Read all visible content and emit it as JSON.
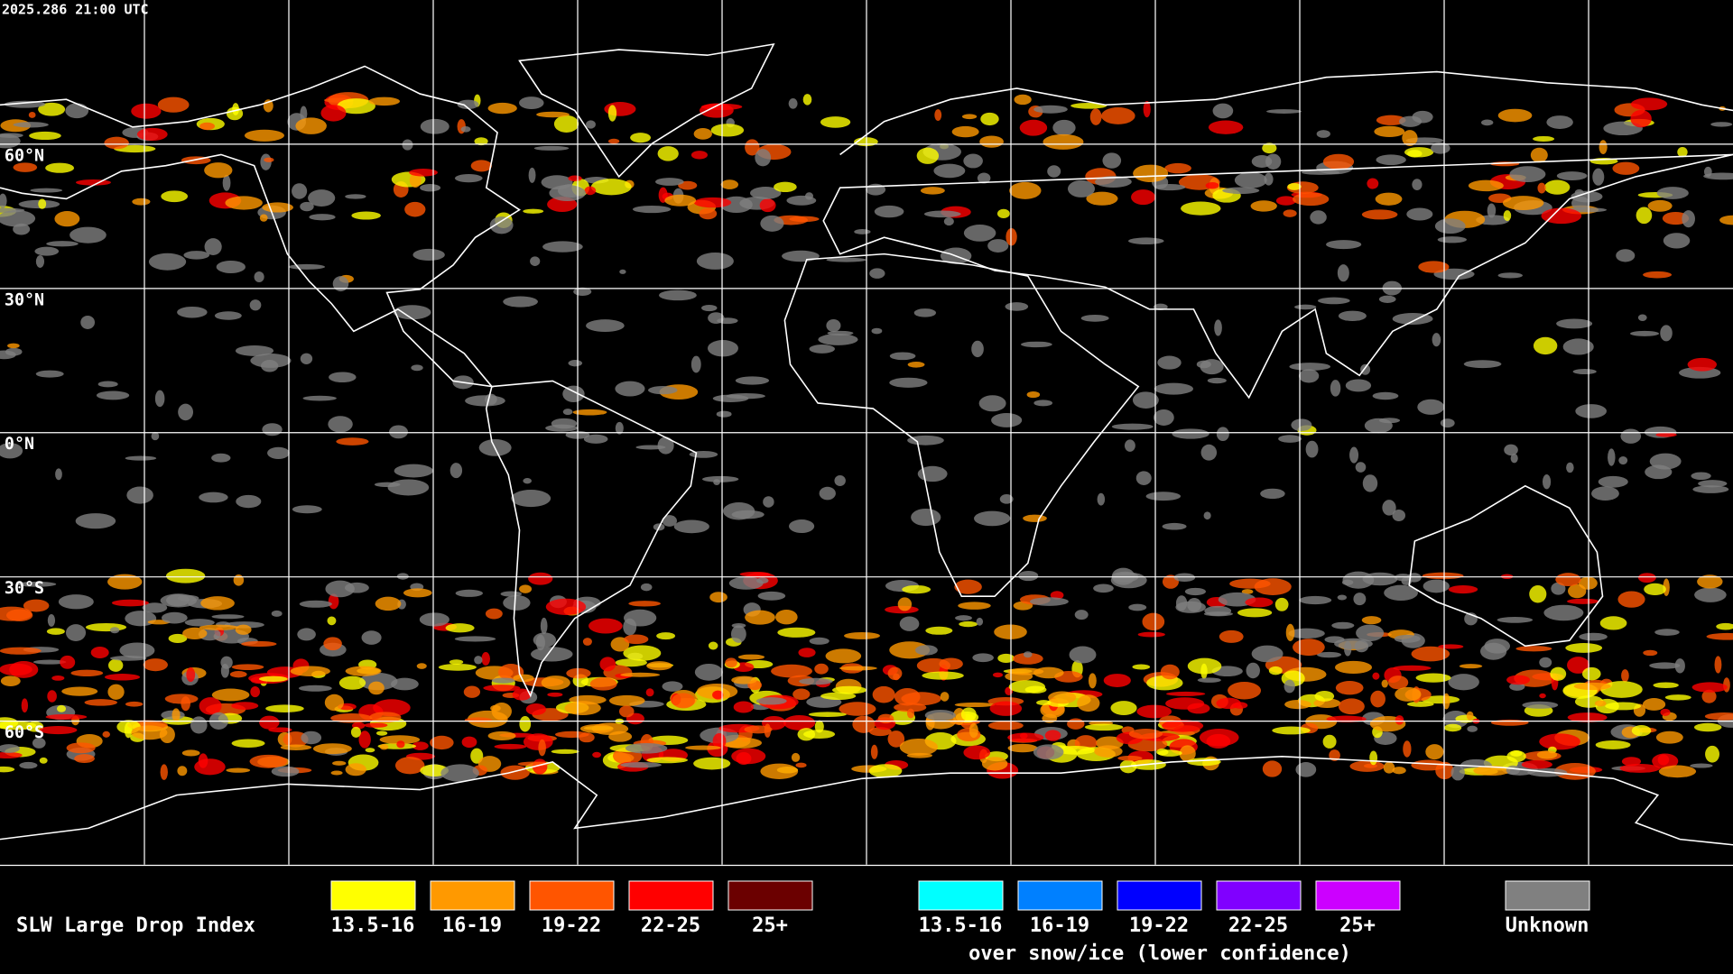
{
  "header": {
    "timestamp": "2025.286 21:00 UTC"
  },
  "latitude_labels": [
    "60°N",
    "30°N",
    "0°N",
    "30°S",
    "60°S"
  ],
  "legend": {
    "title": "SLW Large Drop Index",
    "items": [
      {
        "label": "13.5-16",
        "color": "#ffff00"
      },
      {
        "label": "16-19",
        "color": "#ff9900"
      },
      {
        "label": "19-22",
        "color": "#ff5500"
      },
      {
        "label": "22-25",
        "color": "#ff0000"
      },
      {
        "label": "25+",
        "color": "#6b0000"
      }
    ],
    "snow_items": [
      {
        "label": "13.5-16",
        "color": "#00ffff"
      },
      {
        "label": "16-19",
        "color": "#0080ff"
      },
      {
        "label": "19-22",
        "color": "#0000ff"
      },
      {
        "label": "22-25",
        "color": "#8000ff"
      },
      {
        "label": "25+",
        "color": "#cc00ff"
      }
    ],
    "snow_caption": "over snow/ice (lower confidence)",
    "unknown": {
      "label": "Unknown",
      "color": "#808080"
    }
  }
}
